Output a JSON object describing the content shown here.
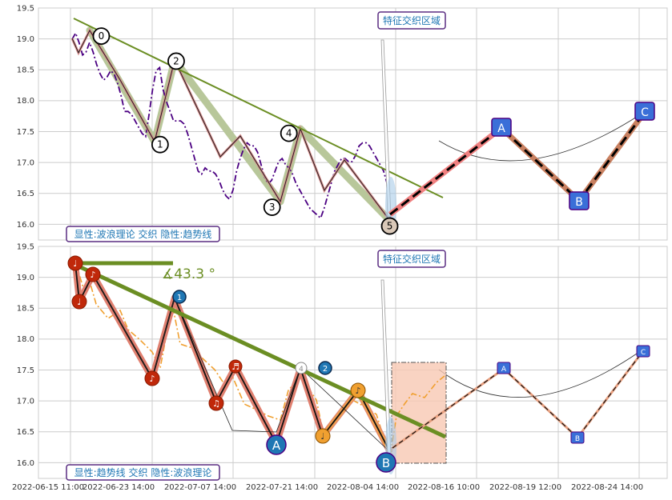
{
  "colors": {
    "grid": "#cccccc",
    "trend": "#6b8e23",
    "purple": "#4b0082",
    "waveFill": "#b8c79a",
    "salmon": "#e8876b",
    "pink": "#f08080",
    "orangeDash": "#f0a030",
    "blue": "#3a6fd8",
    "boxPurple": "#5a2d82",
    "boxText": "#1f77b4"
  },
  "chart_data": [
    {
      "type": "line",
      "ylim": [
        15.8,
        19.5
      ],
      "yticks": [
        "19.5",
        "19.0",
        "18.5",
        "18.0",
        "17.5",
        "17.0",
        "16.5",
        "16.0"
      ],
      "annotations": {
        "zone_label": "特征交织区域",
        "caption": "显性:波浪理论 交织 隐性:趋势线"
      },
      "wave_points": [
        {
          "label": "0",
          "x": 8.8,
          "y": 18.95
        },
        {
          "label": "1",
          "x": 25.6,
          "y": 17.45
        },
        {
          "label": "2",
          "x": 30.2,
          "y": 18.55
        },
        {
          "label": "3",
          "x": 57.6,
          "y": 16.45
        },
        {
          "label": "4",
          "x": 62.4,
          "y": 17.4
        },
        {
          "label": "5",
          "x": 91.2,
          "y": 16.15
        }
      ],
      "projection_points": [
        {
          "label": "A",
          "x": 119,
          "y": 17.55
        },
        {
          "label": "B",
          "x": 138,
          "y": 16.4
        },
        {
          "label": "C",
          "x": 160,
          "y": 17.82
        }
      ],
      "trendline": {
        "x": [
          1.5,
          99
        ],
        "y": [
          19.35,
          16.42
        ]
      },
      "price_series": {
        "x": [
          0,
          1,
          2,
          3,
          4,
          5,
          6,
          7,
          8,
          9,
          10,
          11,
          12,
          13,
          14,
          15,
          16,
          17,
          18,
          19,
          20,
          21,
          22,
          23,
          24,
          25,
          26,
          27,
          28,
          29,
          30,
          31,
          32,
          33,
          34,
          35,
          36,
          37,
          38,
          39,
          40,
          41,
          42,
          43,
          44,
          45,
          46,
          47,
          48,
          49,
          50,
          51,
          52,
          53,
          54,
          55,
          56,
          57,
          58,
          59,
          60,
          61,
          62,
          63,
          64,
          65,
          66,
          67,
          68,
          69,
          70,
          71,
          72,
          73,
          74,
          75,
          76,
          77,
          78,
          79,
          80,
          81,
          82,
          83,
          84,
          85,
          86,
          87,
          88,
          89,
          90,
          91
        ],
        "y": [
          19.0,
          19.1,
          18.95,
          18.75,
          18.8,
          18.95,
          18.8,
          18.6,
          18.45,
          18.35,
          18.4,
          18.5,
          18.45,
          18.3,
          18.1,
          17.85,
          17.85,
          17.8,
          17.7,
          17.6,
          17.5,
          17.45,
          17.8,
          18.2,
          18.5,
          18.55,
          18.2,
          18.0,
          17.85,
          17.7,
          17.7,
          17.7,
          17.65,
          17.5,
          17.3,
          17.1,
          16.9,
          16.85,
          16.95,
          16.9,
          16.9,
          16.85,
          16.75,
          16.6,
          16.5,
          16.45,
          16.6,
          16.9,
          17.1,
          17.25,
          17.35,
          17.3,
          17.3,
          17.2,
          17.0,
          16.8,
          16.7,
          16.75,
          16.9,
          17.05,
          17.1,
          17.0,
          16.95,
          16.85,
          16.7,
          16.6,
          16.5,
          16.4,
          16.3,
          16.25,
          16.2,
          16.15,
          16.3,
          16.5,
          16.7,
          16.9,
          17.0,
          17.1,
          17.1,
          17.05,
          17.05,
          17.15,
          17.3,
          17.35,
          17.35,
          17.3,
          17.2,
          17.1,
          17.0,
          16.9,
          16.7,
          16.15
        ]
      }
    },
    {
      "type": "line",
      "ylim": [
        15.8,
        19.5
      ],
      "yticks": [
        "19.5",
        "19.0",
        "18.5",
        "18.0",
        "17.5",
        "17.0",
        "16.5",
        "16.0"
      ],
      "xticks": [
        "2022-06-15 11:00",
        "2022-06-23 14:00",
        "2022-07-07 14:00",
        "2022-07-21 14:00",
        "2022-08-04 14:00",
        "2022-08-16 10:00",
        "2022-08-19 12:00",
        "2022-08-24 14:00"
      ],
      "annotations": {
        "zone_label": "特征交织区域",
        "caption": "显性:趋势线 交织 隐性:波浪理论",
        "angle_label": "∡43.3 °"
      },
      "trendline": {
        "x": [
          1.0,
          99
        ],
        "y": [
          19.2,
          16.42
        ]
      },
      "horizontal_ref": {
        "x": [
          1.0,
          28
        ],
        "y": 19.22
      },
      "wave_circles": [
        "A",
        "B"
      ],
      "number_markers": [
        "1",
        "2"
      ],
      "projection_points": [
        "A",
        "B",
        "C"
      ]
    }
  ]
}
